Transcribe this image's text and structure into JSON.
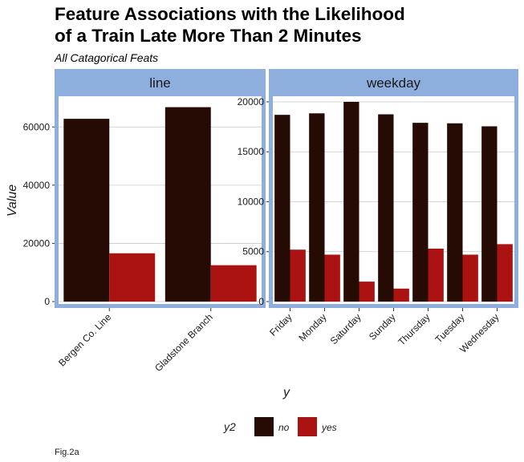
{
  "title_line1": "Feature Associations with the Likelihood",
  "title_line2": "of a Train Late More Than 2 Minutes",
  "subtitle": "All Catagorical Feats",
  "caption": "Fig.2a",
  "colors": {
    "no": "#260a04",
    "yes": "#ab1212",
    "strip": "#8eaedd",
    "panel_border": "#8eaedd",
    "grid": "#c8c8c8"
  },
  "chart_data": [
    {
      "type": "bar",
      "facet": "line",
      "categories": [
        "Bergen Co. Line",
        "Gladstone Branch"
      ],
      "series": [
        {
          "name": "no",
          "values": [
            62800,
            66800
          ]
        },
        {
          "name": "yes",
          "values": [
            16600,
            12500
          ]
        }
      ],
      "ylim": [
        0,
        70000
      ],
      "yticks": [
        0,
        20000,
        40000,
        60000
      ],
      "ytick_labels": [
        "0",
        "20000",
        "40000",
        "60000"
      ],
      "grid": true
    },
    {
      "type": "bar",
      "facet": "weekday",
      "categories": [
        "Friday",
        "Monday",
        "Saturday",
        "Sunday",
        "Thursday",
        "Tuesday",
        "Wednesday"
      ],
      "series": [
        {
          "name": "no",
          "values": [
            18700,
            18850,
            20000,
            18750,
            17900,
            17850,
            17550
          ]
        },
        {
          "name": "yes",
          "values": [
            5200,
            4700,
            2000,
            1300,
            5300,
            4700,
            5750
          ]
        }
      ],
      "ylim": [
        0,
        20400
      ],
      "yticks": [
        0,
        5000,
        10000,
        15000,
        20000
      ],
      "ytick_labels": [
        "0",
        "5000",
        "10000",
        "15000",
        "20000"
      ],
      "grid": true
    }
  ],
  "ylabel": "Value",
  "xlabel": "y",
  "legend": {
    "title": "y2",
    "position": "bottom",
    "items": [
      "no",
      "yes"
    ]
  }
}
